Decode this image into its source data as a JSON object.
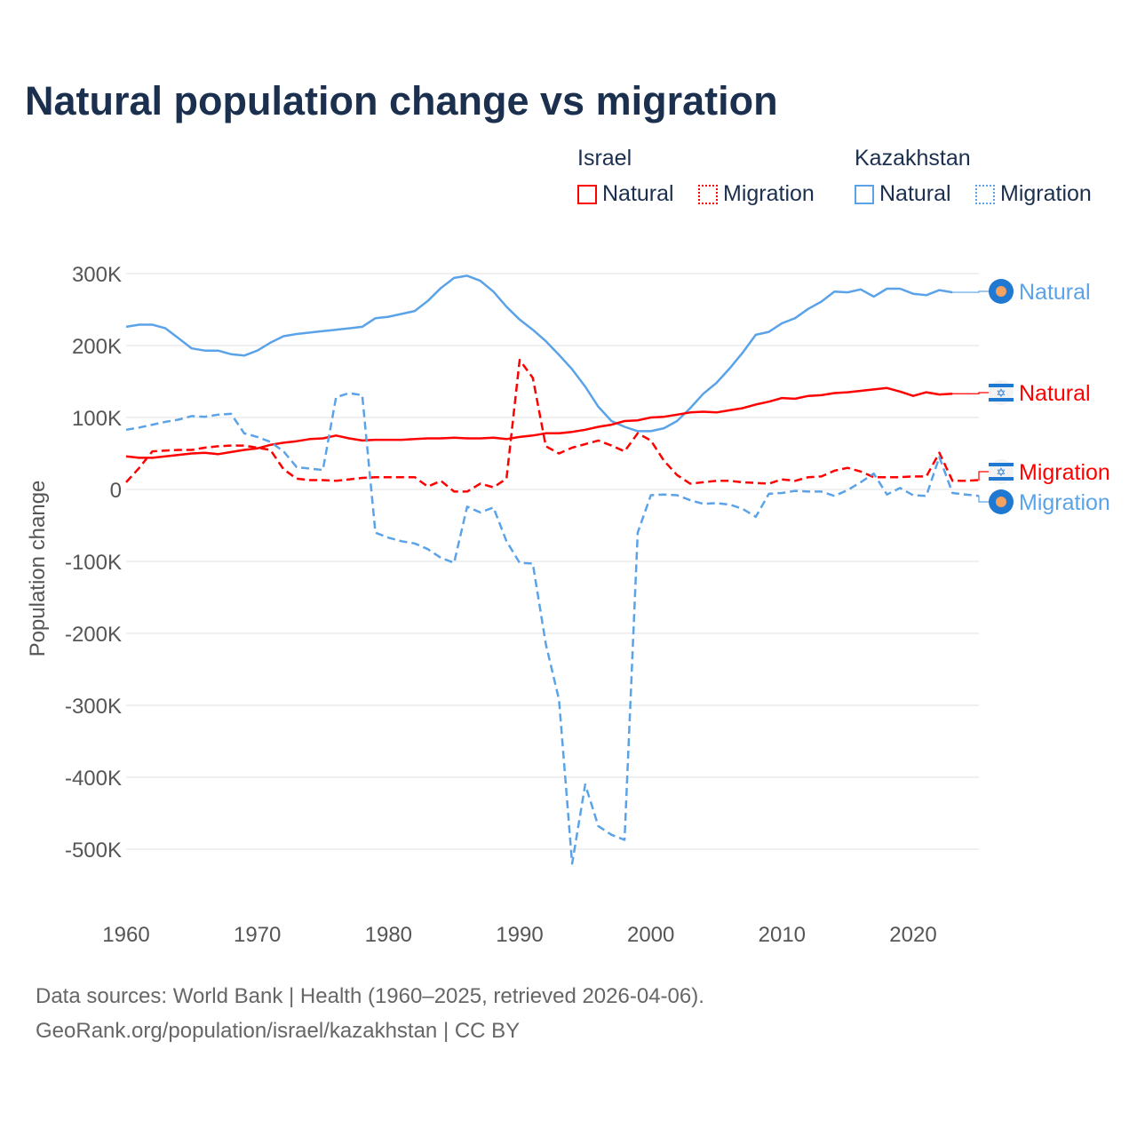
{
  "title": "Natural population change vs migration",
  "legend": {
    "groups": [
      {
        "name": "Israel",
        "items": [
          "Natural",
          "Migration"
        ],
        "color": "#ff0000"
      },
      {
        "name": "Kazakhstan",
        "items": [
          "Natural",
          "Migration"
        ],
        "color": "#5ba3e8"
      }
    ]
  },
  "end_labels": {
    "kz_natural": "Natural",
    "il_natural": "Natural",
    "il_migration": "Migration",
    "kz_migration": "Migration"
  },
  "sources": {
    "line1": "Data sources: World Bank | Health (1960–2025, retrieved 2026-04-06).",
    "line2": "GeoRank.org/population/israel/kazakhstan | CC BY"
  },
  "chart_data": {
    "type": "line",
    "title": "Natural population change vs migration",
    "xlabel": "",
    "ylabel": "Population change",
    "xlim": [
      1960,
      2025
    ],
    "ylim": [
      -500000,
      300000
    ],
    "x_ticks": [
      1960,
      1970,
      1980,
      1990,
      2000,
      2010,
      2020
    ],
    "y_ticks": [
      {
        "v": 300000,
        "label": "300K"
      },
      {
        "v": 200000,
        "label": "200K"
      },
      {
        "v": 100000,
        "label": "100K"
      },
      {
        "v": 0,
        "label": "0"
      },
      {
        "v": -100000,
        "label": "-100K"
      },
      {
        "v": -200000,
        "label": "-200K"
      },
      {
        "v": -300000,
        "label": "-300K"
      },
      {
        "v": -400000,
        "label": "-400K"
      },
      {
        "v": -500000,
        "label": "-500K"
      }
    ],
    "grid": true,
    "legend_position": "top-right",
    "units": "thousands",
    "series": [
      {
        "name": "Kazakhstan Natural",
        "color": "#5ba3e8",
        "dash": false,
        "start": 1960,
        "values": [
          226,
          229,
          229,
          224,
          210,
          196,
          193,
          193,
          188,
          186,
          193,
          204,
          213,
          216,
          218,
          220,
          222,
          224,
          226,
          238,
          240,
          244,
          248,
          262,
          280,
          294,
          297,
          290,
          275,
          254,
          236,
          222,
          206,
          187,
          167,
          143,
          115,
          95,
          87,
          81,
          81,
          85,
          95,
          113,
          133,
          148,
          168,
          190,
          215,
          219,
          231,
          238,
          251,
          261,
          275,
          274,
          278,
          268,
          279,
          279,
          272,
          270,
          277,
          274
        ]
      },
      {
        "name": "Israel Natural",
        "color": "#ff0000",
        "dash": false,
        "start": 1960,
        "values": [
          46,
          44,
          44,
          46,
          48,
          50,
          51,
          49,
          52,
          55,
          57,
          62,
          65,
          67,
          70,
          71,
          75,
          71,
          68,
          69,
          69,
          69,
          70,
          71,
          71,
          72,
          71,
          71,
          72,
          70,
          73,
          75,
          78,
          78,
          80,
          83,
          87,
          90,
          95,
          96,
          100,
          101,
          104,
          107,
          108,
          107,
          110,
          113,
          118,
          122,
          127,
          126,
          130,
          131,
          134,
          135,
          137,
          139,
          141,
          136,
          130,
          135,
          132,
          133
        ]
      },
      {
        "name": "Israel Migration",
        "color": "#ff0000",
        "dash": true,
        "start": 1960,
        "values": [
          10,
          30,
          53,
          54,
          55,
          55,
          58,
          60,
          61,
          61,
          58,
          55,
          28,
          15,
          13,
          13,
          12,
          14,
          16,
          17,
          17,
          17,
          17,
          4,
          12,
          -3,
          -3,
          8,
          3,
          15,
          180,
          155,
          60,
          50,
          58,
          63,
          68,
          61,
          53,
          78,
          68,
          40,
          20,
          8,
          10,
          12,
          12,
          10,
          9,
          8,
          14,
          12,
          17,
          18,
          26,
          30,
          25,
          17,
          17,
          17,
          18,
          18,
          51,
          12,
          12,
          13
        ]
      },
      {
        "name": "Kazakhstan Migration",
        "color": "#5ba3e8",
        "dash": true,
        "start": 1960,
        "values": [
          83,
          86,
          90,
          94,
          97,
          102,
          101,
          104,
          105,
          78,
          73,
          66,
          53,
          31,
          29,
          27,
          128,
          134,
          131,
          -60,
          -67,
          -72,
          -75,
          -83,
          -95,
          -102,
          -24,
          -32,
          -25,
          -72,
          -102,
          -103,
          -215,
          -292,
          -520,
          -410,
          -468,
          -480,
          -487,
          -60,
          -8,
          -7,
          -8,
          -15,
          -20,
          -19,
          -21,
          -27,
          -38,
          -6,
          -5,
          -2,
          -3,
          -3,
          -9,
          -1,
          10,
          22,
          -7,
          2,
          -8,
          -9,
          45,
          -5,
          -7,
          -9
        ]
      }
    ]
  }
}
